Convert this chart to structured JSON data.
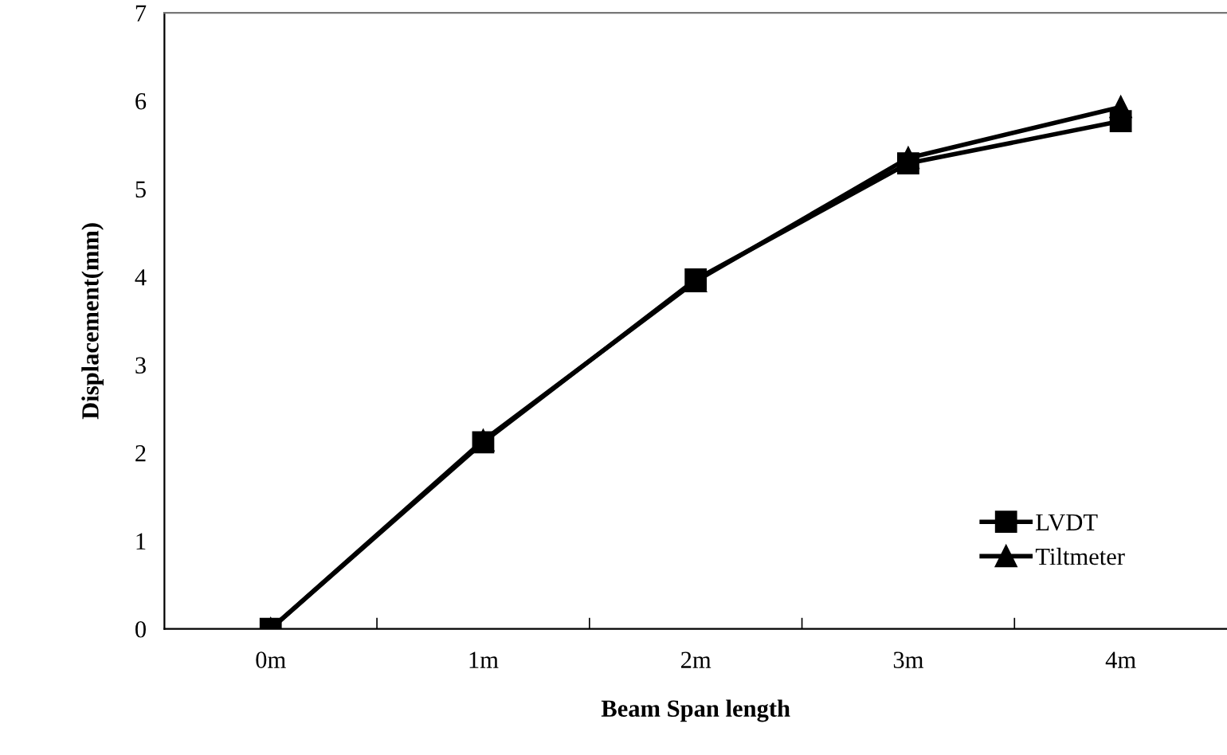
{
  "chart_data": {
    "type": "line",
    "xlabel": "Beam Span length",
    "ylabel": "Displacement(mm)",
    "categories": [
      "0m",
      "1m",
      "2m",
      "3m",
      "4m"
    ],
    "series": [
      {
        "name": "LVDT",
        "color": "#000000",
        "values": [
          0,
          2.12,
          3.97,
          5.29,
          5.77
        ],
        "marker": "square"
      },
      {
        "name": "Tiltmeter",
        "color": "#000000",
        "values": [
          0,
          2.14,
          3.95,
          5.35,
          5.93
        ],
        "marker": "triangle"
      }
    ],
    "ylim": [
      0,
      7
    ],
    "yticks": [
      0,
      1,
      2,
      3,
      4,
      5,
      6,
      7
    ],
    "grid": false,
    "legend": "bottom right",
    "line_style": "solid"
  }
}
